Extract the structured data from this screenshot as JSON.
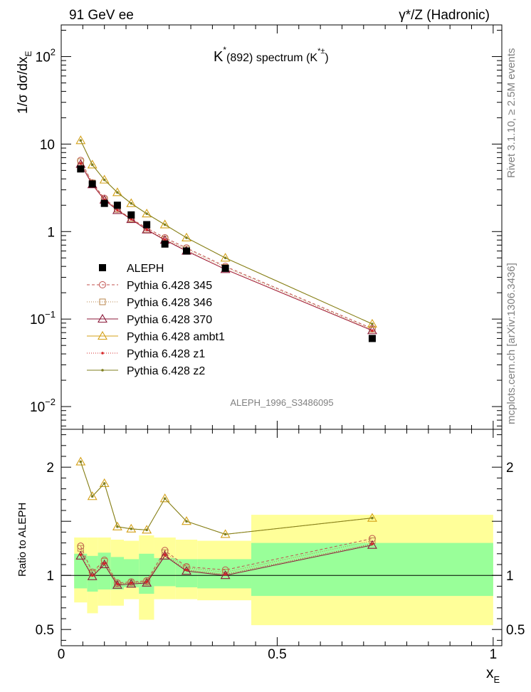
{
  "header": {
    "left": "91 GeV ee",
    "right": "γ*/Z (Hadronic)"
  },
  "side_labels": {
    "rivet": "Rivet 3.1.10, ≥ 2.5M events",
    "mcplots": "mcplots.cern.ch [arXiv:1306.3436]"
  },
  "chart_data": {
    "type": "line",
    "title": {
      "particle": "K",
      "particle_sup": "*",
      "mass": "(892)",
      "spectrum": " spectrum (K",
      "sup": "*±",
      "close": ")"
    },
    "analysis_id": "ALEPH_1996_S3486095",
    "xlabel": {
      "main": "x",
      "sub": "E"
    },
    "ylabel": {
      "main": "1/σ dσ/dx",
      "sub": "E"
    },
    "ratio_ylabel": "Ratio to ALEPH",
    "xlim": [
      0,
      1.02
    ],
    "ylim": [
      0.0055,
      230
    ],
    "yscale": "log",
    "ratio_ylim": [
      0.35,
      2.35
    ],
    "x_ticks": [
      {
        "value": 0,
        "label": "0"
      },
      {
        "value": 0.5,
        "label": "0.5"
      },
      {
        "value": 1,
        "label": "1"
      }
    ],
    "y_ticks": [
      {
        "value": 100,
        "base": "10",
        "exp": "2"
      },
      {
        "value": 10,
        "base": "10",
        "exp": ""
      },
      {
        "value": 1,
        "base": "1",
        "exp": ""
      },
      {
        "value": 0.1,
        "base": "10",
        "exp": "−1"
      },
      {
        "value": 0.01,
        "base": "10",
        "exp": "−2"
      }
    ],
    "ratio_ticks": [
      {
        "value": 2,
        "label": "2"
      },
      {
        "value": 1,
        "label": "1"
      },
      {
        "value": 0.5,
        "label": "0.5"
      }
    ],
    "data": {
      "name": "ALEPH",
      "color": "#000000",
      "x": [
        0.045,
        0.072,
        0.1,
        0.13,
        0.162,
        0.198,
        0.24,
        0.29,
        0.38,
        0.72
      ],
      "y": [
        5.2,
        3.5,
        2.1,
        2.0,
        1.55,
        1.2,
        0.72,
        0.6,
        0.38,
        0.06
      ]
    },
    "bands": [
      {
        "x0": 0.03,
        "x1": 0.06,
        "in": [
          0.88,
          1.2
        ],
        "out": [
          0.75,
          1.35
        ]
      },
      {
        "x0": 0.06,
        "x1": 0.085,
        "in": [
          0.85,
          1.18
        ],
        "out": [
          0.65,
          1.35
        ]
      },
      {
        "x0": 0.085,
        "x1": 0.115,
        "in": [
          0.87,
          1.21
        ],
        "out": [
          0.72,
          1.35
        ]
      },
      {
        "x0": 0.115,
        "x1": 0.145,
        "in": [
          0.87,
          1.17
        ],
        "out": [
          0.72,
          1.33
        ]
      },
      {
        "x0": 0.145,
        "x1": 0.18,
        "in": [
          0.89,
          1.15
        ],
        "out": [
          0.78,
          1.32
        ]
      },
      {
        "x0": 0.18,
        "x1": 0.215,
        "in": [
          0.83,
          1.2
        ],
        "out": [
          0.59,
          1.37
        ]
      },
      {
        "x0": 0.215,
        "x1": 0.265,
        "in": [
          0.9,
          1.16
        ],
        "out": [
          0.78,
          1.35
        ]
      },
      {
        "x0": 0.265,
        "x1": 0.315,
        "in": [
          0.89,
          1.15
        ],
        "out": [
          0.78,
          1.33
        ]
      },
      {
        "x0": 0.315,
        "x1": 0.44,
        "in": [
          0.88,
          1.15
        ],
        "out": [
          0.77,
          1.32
        ]
      },
      {
        "x0": 0.44,
        "x1": 1.0,
        "in": [
          0.81,
          1.3
        ],
        "out": [
          0.54,
          1.56
        ]
      }
    ],
    "series": [
      {
        "name": "Pythia 6.428 345",
        "color": "#c0504d",
        "dash": "4,3",
        "marker": "circle",
        "y": [
          6.5,
          3.6,
          2.4,
          1.8,
          1.4,
          1.1,
          0.85,
          0.65,
          0.4,
          0.078
        ],
        "ratio": [
          1.27,
          1.03,
          1.14,
          0.93,
          0.94,
          0.95,
          1.23,
          1.08,
          1.05,
          1.34
        ]
      },
      {
        "name": "Pythia 6.428 346",
        "color": "#b8864b",
        "dash": "1,2",
        "marker": "square",
        "y": [
          6.3,
          3.6,
          2.3,
          1.8,
          1.4,
          1.05,
          0.82,
          0.63,
          0.39,
          0.076
        ],
        "ratio": [
          1.25,
          1.02,
          1.13,
          0.92,
          0.93,
          0.94,
          1.21,
          1.07,
          1.03,
          1.32
        ]
      },
      {
        "name": "Pythia 6.428 370",
        "color": "#8b1a3a",
        "dash": "",
        "marker": "triangle",
        "y": [
          5.9,
          3.45,
          2.3,
          1.75,
          1.38,
          1.05,
          0.8,
          0.6,
          0.37,
          0.074
        ],
        "ratio": [
          1.18,
          0.99,
          1.1,
          0.91,
          0.92,
          0.93,
          1.18,
          1.04,
          1.0,
          1.28
        ]
      },
      {
        "name": "Pythia 6.428 ambt1",
        "color": "#d4a017",
        "dash": "",
        "marker": "triangle",
        "y": [
          11.0,
          5.8,
          3.9,
          2.8,
          2.1,
          1.6,
          1.2,
          0.85,
          0.5,
          0.088
        ],
        "ratio": [
          2.05,
          1.73,
          1.85,
          1.45,
          1.43,
          1.42,
          1.71,
          1.5,
          1.38,
          1.53
        ]
      },
      {
        "name": "Pythia 6.428 z1",
        "color": "#d62728",
        "dash": "1,2",
        "marker": "dot",
        "y": [
          6.0,
          3.5,
          2.3,
          1.76,
          1.38,
          1.06,
          0.81,
          0.61,
          0.37,
          0.074
        ],
        "ratio": [
          1.19,
          1.0,
          1.11,
          0.92,
          0.93,
          0.94,
          1.19,
          1.05,
          1.01,
          1.29
        ]
      },
      {
        "name": "Pythia 6.428 z2",
        "color": "#7f7f1f",
        "dash": "",
        "marker": "dot",
        "y": [
          11.0,
          5.8,
          3.9,
          2.8,
          2.1,
          1.6,
          1.2,
          0.85,
          0.5,
          0.088
        ],
        "ratio": [
          2.05,
          1.73,
          1.85,
          1.45,
          1.43,
          1.42,
          1.71,
          1.5,
          1.38,
          1.53
        ]
      }
    ],
    "band_colors": {
      "inner": "#99ff99",
      "outer": "#ffff99"
    }
  }
}
